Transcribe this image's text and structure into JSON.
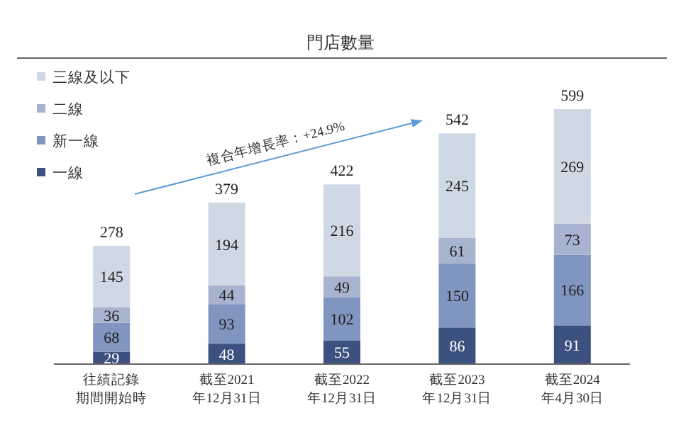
{
  "chart_data": {
    "type": "bar",
    "title": "門店數量",
    "stacked": true,
    "data_labels": true,
    "legend": "top left",
    "categories": [
      "往績記錄期間開始時",
      "截至2021年12月31日",
      "截至2022年12月31日",
      "截至2023年12月31日",
      "截至2024年4月30日"
    ],
    "series": [
      {
        "name": "一線",
        "color": "#3d5180",
        "values": [
          29,
          48,
          55,
          86,
          91
        ]
      },
      {
        "name": "新一線",
        "color": "#8095bf",
        "values": [
          68,
          93,
          102,
          150,
          166
        ]
      },
      {
        "name": "二線",
        "color": "#a8b3d0",
        "values": [
          36,
          44,
          49,
          61,
          73
        ]
      },
      {
        "name": "三線及以下",
        "color": "#cfd9e6",
        "values": [
          145,
          194,
          216,
          245,
          269
        ]
      }
    ],
    "totals": [
      "278",
      "379",
      "422",
      "542",
      "599"
    ],
    "annotations": [
      "複合年增長率：+24.9%"
    ]
  }
}
